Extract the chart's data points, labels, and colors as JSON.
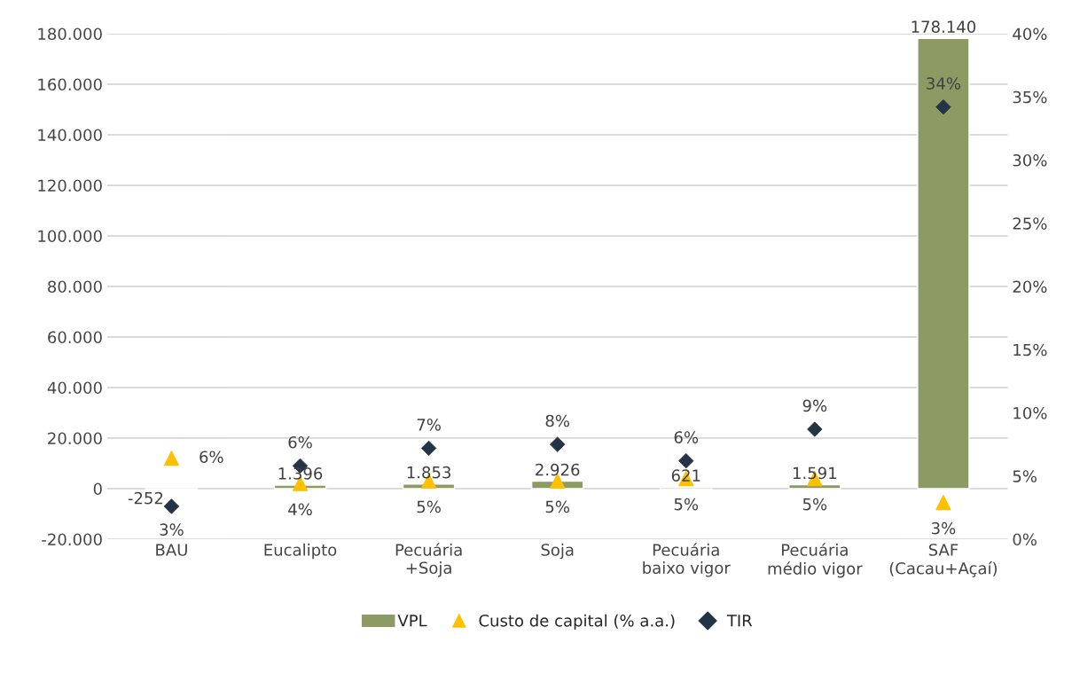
{
  "chart_data": {
    "type": "bar",
    "categories": [
      "BAU",
      "Eucalipto",
      "Pecuária\n+Soja",
      "Soja",
      "Pecuária\nbaixo vigor",
      "Pecuária\nmédio vigor",
      "SAF\n(Cacau+Açaí)"
    ],
    "series": [
      {
        "name": "VPL",
        "color": "#8c9a64",
        "values": [
          -252,
          1396,
          1853,
          2926,
          621,
          1591,
          178140
        ],
        "value_labels": [
          "-252",
          "1.396",
          "1.853",
          "2.926",
          "621",
          "1.591",
          "178.140"
        ]
      },
      {
        "name": "Custo de capital (% a.a.)",
        "type": "scatter",
        "axis": "y2",
        "marker": "triangle",
        "color": "#ffc000",
        "values": [
          6.4,
          4.4,
          4.6,
          4.6,
          4.8,
          4.8,
          2.9
        ],
        "value_labels": [
          "6%",
          "4%",
          "5%",
          "5%",
          "5%",
          "5%",
          "3%"
        ]
      },
      {
        "name": "TIR",
        "type": "scatter",
        "axis": "y2",
        "marker": "diamond",
        "color": "#243447",
        "values": [
          2.6,
          5.8,
          7.2,
          7.5,
          6.2,
          8.7,
          34.2
        ],
        "value_labels": [
          "3%",
          "6%",
          "7%",
          "8%",
          "6%",
          "9%",
          "34%"
        ]
      }
    ],
    "ylim": [
      -20000,
      180000
    ],
    "yticks": [
      {
        "value": -20000,
        "label": "-20.000"
      },
      {
        "value": 0,
        "label": "0"
      },
      {
        "value": 20000,
        "label": "20.000"
      },
      {
        "value": 40000,
        "label": "40.000"
      },
      {
        "value": 60000,
        "label": "60.000"
      },
      {
        "value": 80000,
        "label": "80.000"
      },
      {
        "value": 100000,
        "label": "100.000"
      },
      {
        "value": 120000,
        "label": "120.000"
      },
      {
        "value": 140000,
        "label": "140.000"
      },
      {
        "value": 160000,
        "label": "160.000"
      },
      {
        "value": 180000,
        "label": "180.000"
      }
    ],
    "y2lim": [
      0,
      40
    ],
    "y2ticks": [
      {
        "value": 0,
        "label": "0%"
      },
      {
        "value": 5,
        "label": "5%"
      },
      {
        "value": 10,
        "label": "10%"
      },
      {
        "value": 15,
        "label": "15%"
      },
      {
        "value": 20,
        "label": "20%"
      },
      {
        "value": 25,
        "label": "25%"
      },
      {
        "value": 30,
        "label": "30%"
      },
      {
        "value": 35,
        "label": "35%"
      },
      {
        "value": 40,
        "label": "40%"
      }
    ],
    "grid": "y",
    "legend": "bottom"
  }
}
